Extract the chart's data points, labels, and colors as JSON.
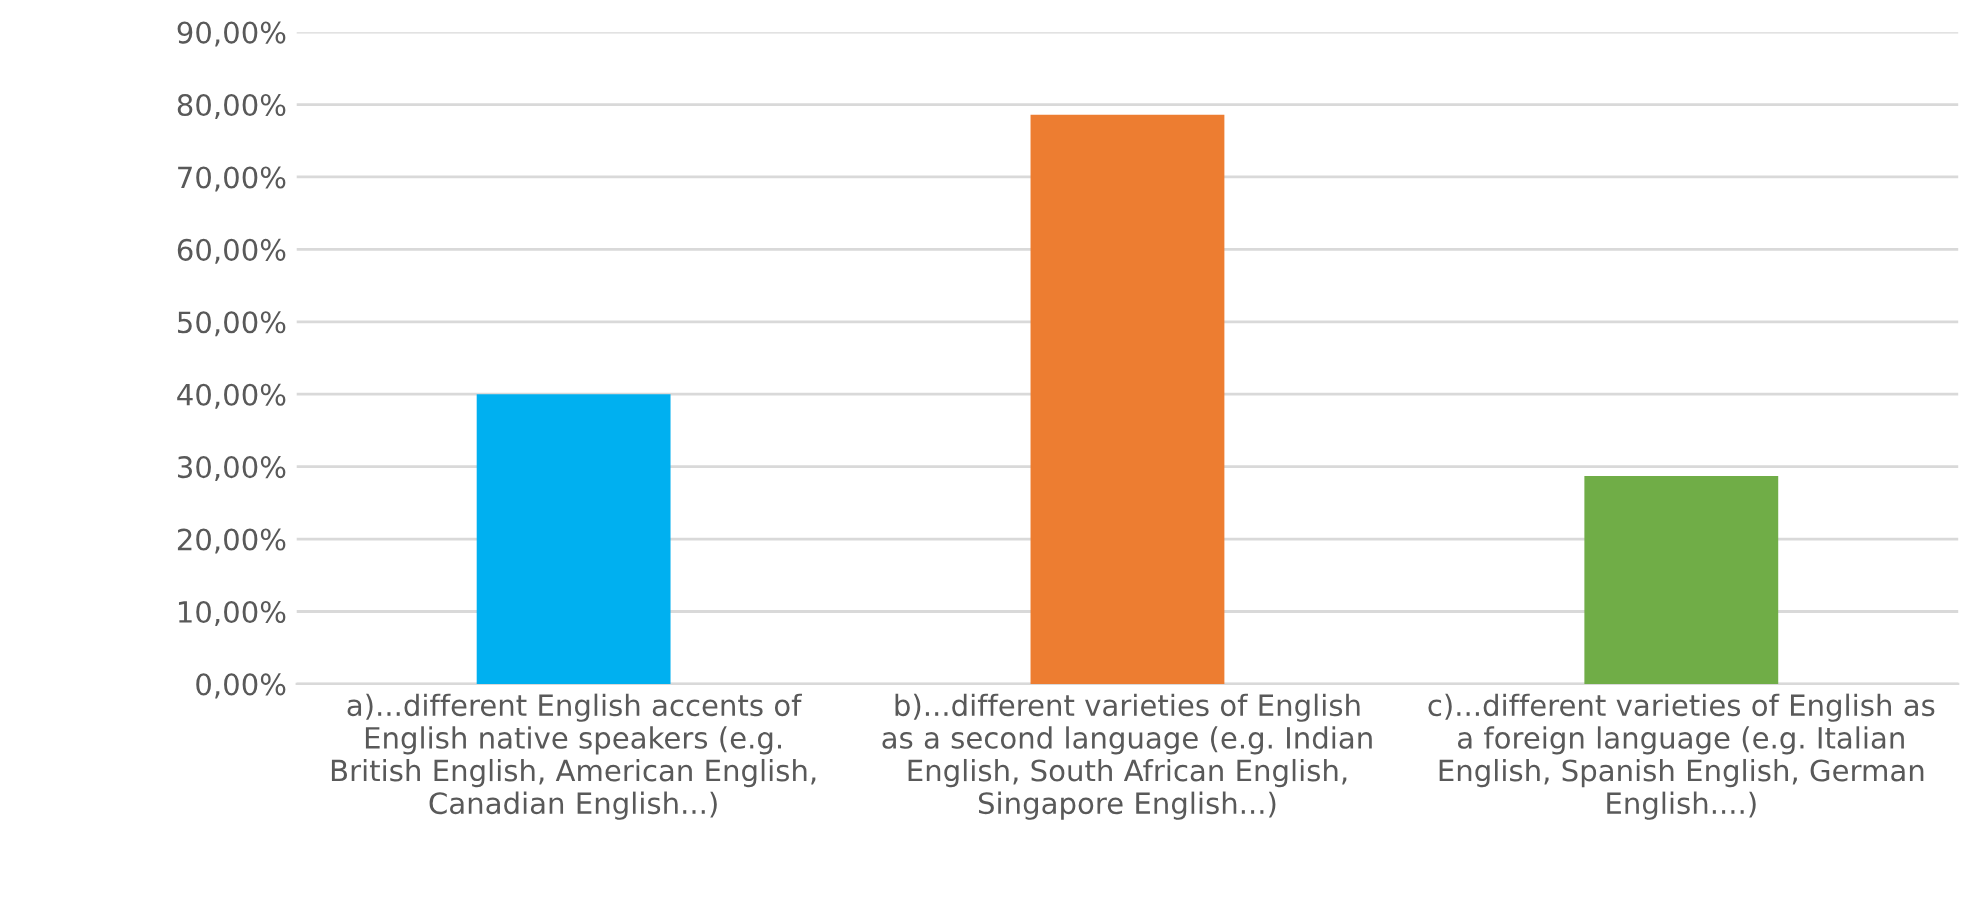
{
  "chart_data": {
    "type": "bar",
    "categories": [
      "a)...different English accents of\nEnglish native speakers (e.g.\nBritish English, American English,\nCanadian English...)",
      "b)...different varieties of English\nas a second language (e.g. Indian\nEnglish, South African English,\nSingapore English...)",
      "c)...different varieties of English as\na foreign language (e.g. Italian\nEnglish, Spanish English, German\nEnglish....)"
    ],
    "values": [
      40.0,
      78.6,
      28.7
    ],
    "colors": [
      "#00b0f0",
      "#ed7d31",
      "#70ad47"
    ],
    "ylim": [
      0,
      90
    ],
    "yticks": [
      {
        "value": 0,
        "label": "0,00%"
      },
      {
        "value": 10,
        "label": "10,00%"
      },
      {
        "value": 20,
        "label": "20,00%"
      },
      {
        "value": 30,
        "label": "30,00%"
      },
      {
        "value": 40,
        "label": "40,00%"
      },
      {
        "value": 50,
        "label": "50,00%"
      },
      {
        "value": 60,
        "label": "60,00%"
      },
      {
        "value": 70,
        "label": "70,00%"
      },
      {
        "value": 80,
        "label": "80,00%"
      },
      {
        "value": 90,
        "label": "90,00%"
      }
    ],
    "grid": "y",
    "legend": false
  }
}
